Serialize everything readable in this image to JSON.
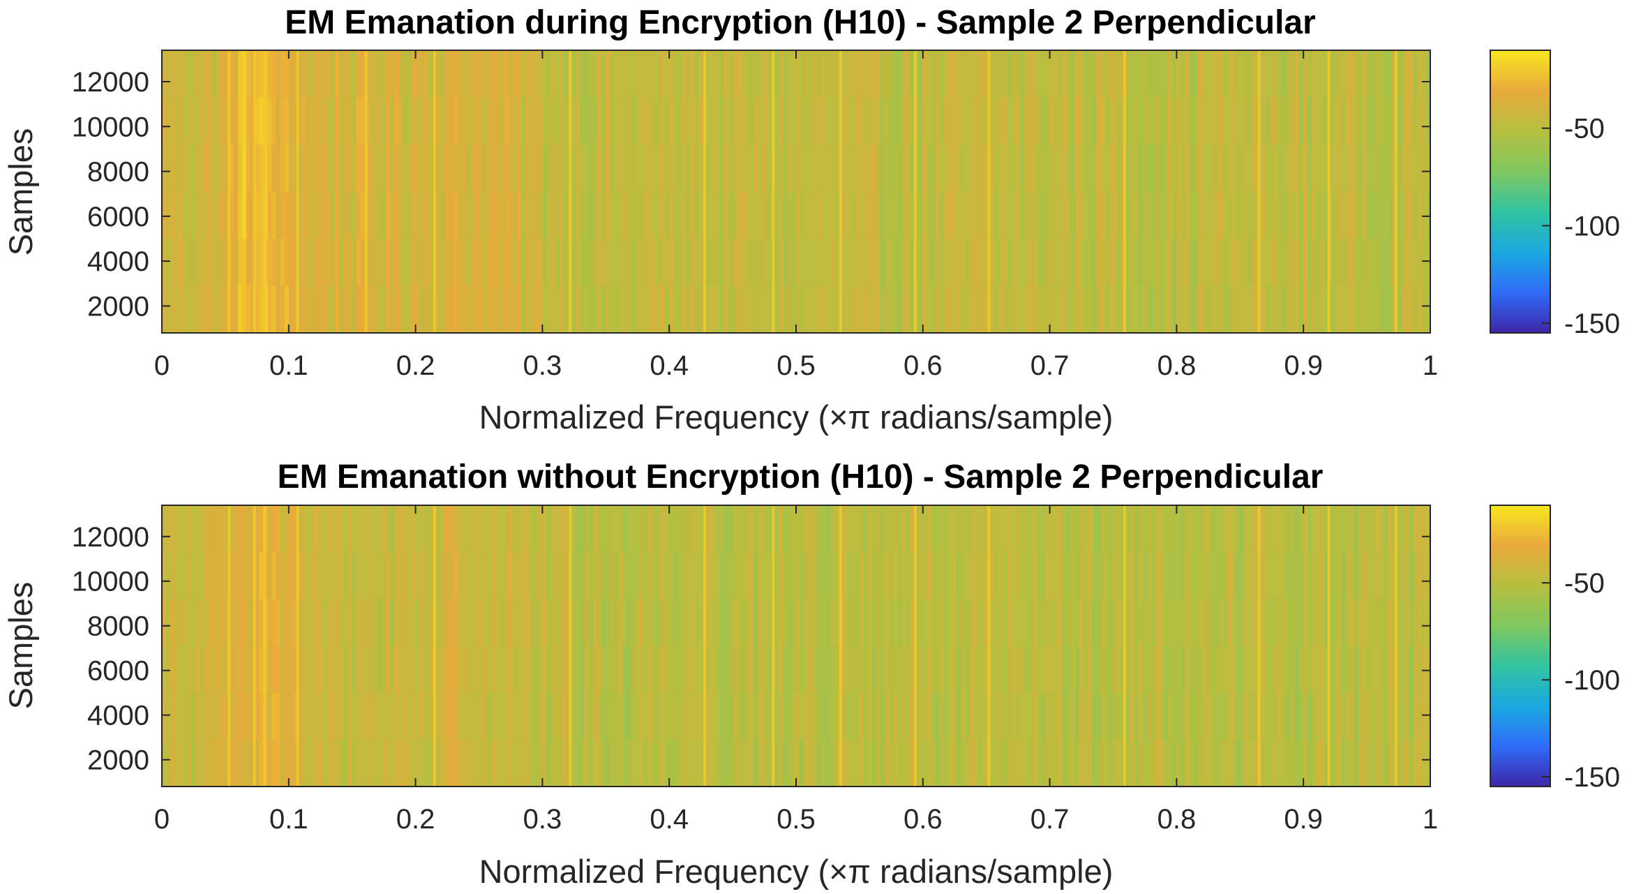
{
  "colormap": [
    "#3e26a8",
    "#2f6cf8",
    "#1aa9e0",
    "#31c4a1",
    "#80c760",
    "#b5bf3f",
    "#eaaa3c",
    "#f7e71e"
  ],
  "charts": [
    {
      "title": "EM Emanation during Encryption (H10) - Sample 2 Perpendicular",
      "xlabel": "Normalized Frequency (×π radians/sample)",
      "ylabel": "Samples",
      "xticks": [
        "0",
        "0.1",
        "0.2",
        "0.3",
        "0.4",
        "0.5",
        "0.6",
        "0.7",
        "0.8",
        "0.9",
        "1"
      ],
      "yticks": [
        "2000",
        "4000",
        "6000",
        "8000",
        "10000",
        "12000"
      ],
      "cticks": [
        "-50",
        "-100",
        "-150"
      ]
    },
    {
      "title": "EM Emanation without Encryption (H10) - Sample 2 Perpendicular",
      "xlabel": "Normalized Frequency (×π radians/sample)",
      "ylabel": "Samples",
      "xticks": [
        "0",
        "0.1",
        "0.2",
        "0.3",
        "0.4",
        "0.5",
        "0.6",
        "0.7",
        "0.8",
        "0.9",
        "1"
      ],
      "yticks": [
        "2000",
        "4000",
        "6000",
        "8000",
        "10000",
        "12000"
      ],
      "cticks": [
        "-50",
        "-100",
        "-150"
      ]
    }
  ],
  "chart_data": [
    {
      "type": "heatmap",
      "title": "EM Emanation during Encryption (H10) - Sample 2 Perpendicular",
      "xlabel": "Normalized Frequency (×π radians/sample)",
      "ylabel": "Samples",
      "xlim": [
        0,
        1
      ],
      "ylim": [
        800,
        13400
      ],
      "clim": [
        -155,
        -10
      ],
      "colormap_name": "parula",
      "xticks": [
        0,
        0.1,
        0.2,
        0.3,
        0.4,
        0.5,
        0.6,
        0.7,
        0.8,
        0.9,
        1
      ],
      "yticks": [
        2000,
        4000,
        6000,
        8000,
        10000,
        12000
      ],
      "cticks": [
        -50,
        -100,
        -150
      ],
      "profile_freq": [
        0,
        0.05,
        0.06,
        0.08,
        0.1,
        0.12,
        0.2,
        0.25,
        0.3,
        0.35,
        0.42,
        0.5,
        0.6,
        0.7,
        0.8,
        0.9,
        1.0
      ],
      "profile_db": [
        -42,
        -40,
        -28,
        -24,
        -34,
        -38,
        -40,
        -36,
        -44,
        -48,
        -46,
        -48,
        -48,
        -47,
        -48,
        -48,
        -48
      ],
      "bright_lines": [
        0.053,
        0.073,
        0.081,
        0.107,
        0.161,
        0.215,
        0.322,
        0.428,
        0.482,
        0.535,
        0.594,
        0.652,
        0.759,
        0.865,
        0.92,
        0.973
      ]
    },
    {
      "type": "heatmap",
      "title": "EM Emanation without Encryption (H10) - Sample 2 Perpendicular",
      "xlabel": "Normalized Frequency (×π radians/sample)",
      "ylabel": "Samples",
      "xlim": [
        0,
        1
      ],
      "ylim": [
        800,
        13400
      ],
      "clim": [
        -155,
        -10
      ],
      "colormap_name": "parula",
      "xticks": [
        0,
        0.1,
        0.2,
        0.3,
        0.4,
        0.5,
        0.6,
        0.7,
        0.8,
        0.9,
        1
      ],
      "yticks": [
        2000,
        4000,
        6000,
        8000,
        10000,
        12000
      ],
      "cticks": [
        -50,
        -100,
        -150
      ],
      "profile_freq": [
        0,
        0.05,
        0.06,
        0.08,
        0.1,
        0.12,
        0.2,
        0.25,
        0.3,
        0.35,
        0.42,
        0.5,
        0.6,
        0.7,
        0.8,
        0.9,
        1.0
      ],
      "profile_db": [
        -46,
        -44,
        -32,
        -28,
        -36,
        -46,
        -44,
        -40,
        -48,
        -50,
        -48,
        -50,
        -50,
        -50,
        -50,
        -50,
        -50
      ],
      "bright_lines": [
        0.053,
        0.073,
        0.081,
        0.107,
        0.215,
        0.322,
        0.428,
        0.482,
        0.535,
        0.594,
        0.652,
        0.759,
        0.865,
        0.92,
        0.973
      ]
    }
  ]
}
